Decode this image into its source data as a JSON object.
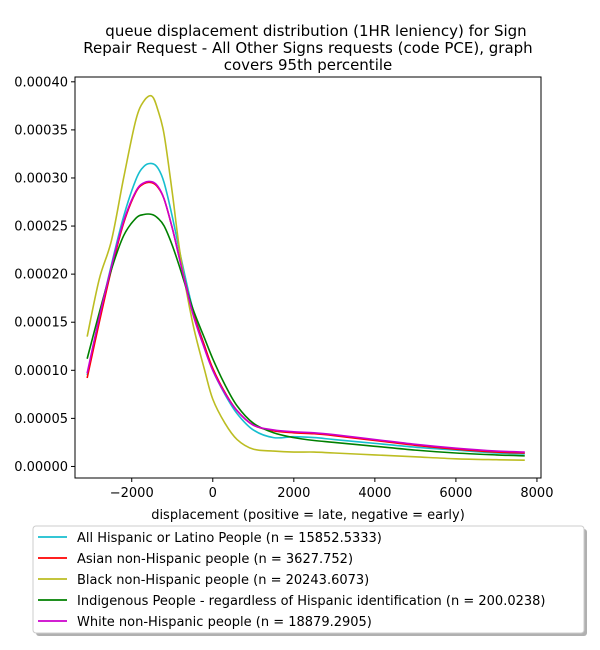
{
  "chart_data": {
    "type": "line",
    "title_lines": [
      "queue displacement distribution (1HR leniency) for Sign",
      "Repair Request - All Other Signs  requests (code PCE), graph",
      "covers 95th percentile"
    ],
    "xlabel": "displacement (positive = late, negative = early)",
    "ylabel": "",
    "xlim": [
      -3400,
      8100
    ],
    "ylim": [
      -1.2e-05,
      0.000405
    ],
    "xticks": [
      -2000,
      0,
      2000,
      4000,
      6000,
      8000
    ],
    "xtick_labels": [
      "−2000",
      "0",
      "2000",
      "4000",
      "6000",
      "8000"
    ],
    "yticks": [
      0,
      5e-05,
      0.0001,
      0.00015,
      0.0002,
      0.00025,
      0.0003,
      0.00035,
      0.0004
    ],
    "ytick_labels": [
      "0.00000",
      "0.00005",
      "0.00010",
      "0.00015",
      "0.00020",
      "0.00025",
      "0.00030",
      "0.00035",
      "0.00040"
    ],
    "grid": false,
    "legend_position": "below",
    "series": [
      {
        "name": "All Hispanic or Latino People (n = 15852.5333)",
        "color": "#17becf",
        "x": [
          -3100,
          -2800,
          -2500,
          -2200,
          -1900,
          -1700,
          -1500,
          -1350,
          -1200,
          -1000,
          -800,
          -500,
          -200,
          0,
          300,
          600,
          1000,
          1500,
          2000,
          2500,
          3000,
          4000,
          5000,
          6000,
          7000,
          7700
        ],
        "y": [
          9.5e-05,
          0.000155,
          0.00021,
          0.00026,
          0.000298,
          0.000312,
          0.000315,
          0.00031,
          0.000295,
          0.00026,
          0.00022,
          0.000165,
          0.000125,
          0.0001,
          7.5e-05,
          5.5e-05,
          3.8e-05,
          3e-05,
          3.1e-05,
          3e-05,
          2.8e-05,
          2.4e-05,
          2e-05,
          1.7e-05,
          1.4e-05,
          1.3e-05
        ]
      },
      {
        "name": "Asian non-Hispanic people (n = 3627.752)",
        "color": "#ff0000",
        "x": [
          -3100,
          -2800,
          -2500,
          -2200,
          -1900,
          -1700,
          -1500,
          -1350,
          -1200,
          -1000,
          -800,
          -500,
          -200,
          0,
          300,
          600,
          1000,
          1500,
          2000,
          2500,
          3000,
          4000,
          5000,
          6000,
          7000,
          7700
        ],
        "y": [
          9.2e-05,
          0.00015,
          0.000205,
          0.000253,
          0.000285,
          0.000294,
          0.000295,
          0.00029,
          0.000278,
          0.000248,
          0.000213,
          0.000162,
          0.000125,
          0.000102,
          7.7e-05,
          5.8e-05,
          4.3e-05,
          3.7e-05,
          3.5e-05,
          3.4e-05,
          3.2e-05,
          2.7e-05,
          2.2e-05,
          1.8e-05,
          1.5e-05,
          1.4e-05
        ]
      },
      {
        "name": "Black non-Hispanic people (n = 20243.6073)",
        "color": "#bcbd22",
        "x": [
          -3100,
          -2800,
          -2500,
          -2200,
          -1900,
          -1700,
          -1500,
          -1350,
          -1200,
          -1000,
          -800,
          -500,
          -200,
          0,
          300,
          600,
          1000,
          1500,
          2000,
          2500,
          3000,
          4000,
          5000,
          6000,
          7000,
          7700
        ],
        "y": [
          0.000135,
          0.000195,
          0.000235,
          0.0003,
          0.00036,
          0.00038,
          0.000385,
          0.00037,
          0.000345,
          0.000285,
          0.00022,
          0.00015,
          0.0001,
          7e-05,
          4.5e-05,
          2.8e-05,
          1.8e-05,
          1.6e-05,
          1.5e-05,
          1.5e-05,
          1.4e-05,
          1.2e-05,
          1e-05,
          8e-06,
          7e-06,
          6.5e-06
        ]
      },
      {
        "name": "Indigenous People - regardless of Hispanic identification (n = 200.0238)",
        "color": "#008000",
        "x": [
          -3100,
          -2800,
          -2500,
          -2200,
          -1900,
          -1700,
          -1500,
          -1350,
          -1200,
          -1000,
          -800,
          -500,
          -200,
          0,
          300,
          600,
          1000,
          1500,
          2000,
          2500,
          3000,
          4000,
          5000,
          6000,
          7000,
          7700
        ],
        "y": [
          0.000112,
          0.00016,
          0.000205,
          0.00024,
          0.000258,
          0.000262,
          0.000262,
          0.000258,
          0.00025,
          0.00023,
          0.000205,
          0.000165,
          0.000133,
          0.000112,
          8.5e-05,
          6.3e-05,
          4.5e-05,
          3.5e-05,
          3e-05,
          2.7e-05,
          2.5e-05,
          2.1e-05,
          1.7e-05,
          1.4e-05,
          1.2e-05,
          1.1e-05
        ]
      },
      {
        "name": "White non-Hispanic people (n = 18879.2905)",
        "color": "#cc00cc",
        "x": [
          -3100,
          -2800,
          -2500,
          -2200,
          -1900,
          -1700,
          -1500,
          -1350,
          -1200,
          -1000,
          -800,
          -500,
          -200,
          0,
          300,
          600,
          1000,
          1500,
          2000,
          2500,
          3000,
          4000,
          5000,
          6000,
          7000,
          7700
        ],
        "y": [
          9.7e-05,
          0.000155,
          0.000208,
          0.000255,
          0.000286,
          0.000295,
          0.000296,
          0.000291,
          0.000278,
          0.000248,
          0.000212,
          0.00016,
          0.000122,
          0.0001,
          7.6e-05,
          5.8e-05,
          4.3e-05,
          3.8e-05,
          3.6e-05,
          3.5e-05,
          3.3e-05,
          2.8e-05,
          2.3e-05,
          1.9e-05,
          1.6e-05,
          1.5e-05
        ]
      }
    ]
  }
}
